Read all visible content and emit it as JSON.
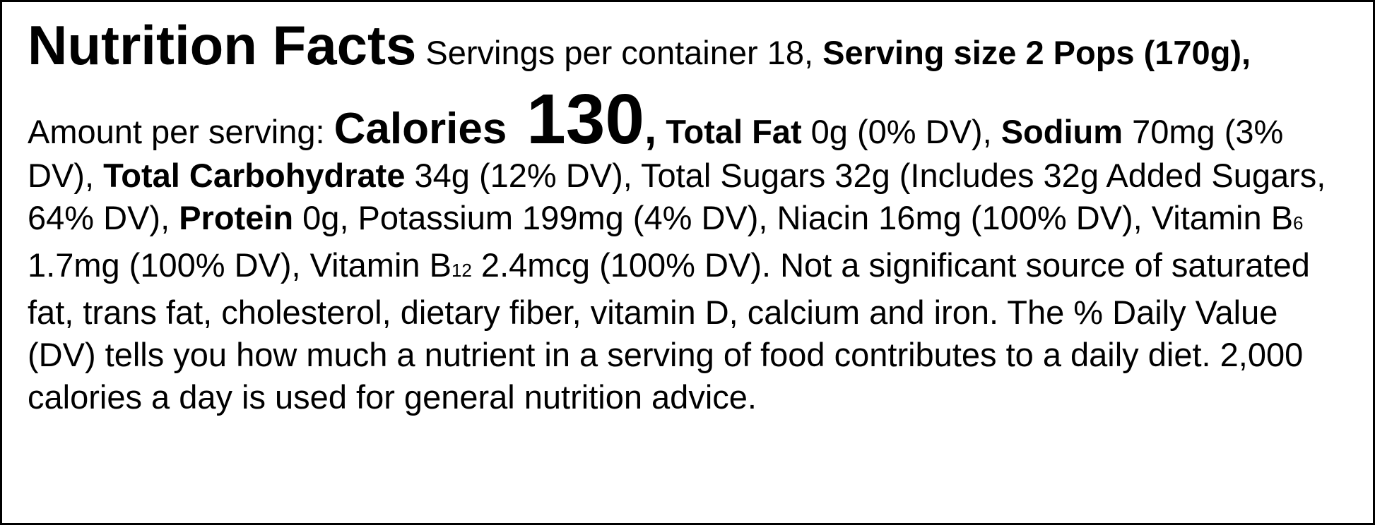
{
  "label": {
    "title": "Nutrition Facts",
    "segments": [
      " Servings per container 18, ",
      "Serving size 2 Pops (170g),",
      " Amount per serving: ",
      "Calories",
      " 130",
      ",",
      " Total Fat",
      " 0g (0% DV), ",
      "Sodium",
      " 70mg (3% DV), ",
      "Total Carbohydrate",
      " 34g (12% DV), Total Sugars 32g (Includes 32g Added Sugars, 64% DV), ",
      "Protein",
      " 0g, Potassium 199mg (4% DV), Niacin 16mg (100% DV), Vitamin B",
      "6",
      " 1.7mg (100% DV), Vitamin B",
      "12",
      " 2.4mcg (100% DV). Not a significant source of saturated fat, trans fat, cholesterol, dietary fiber, vitamin D, calcium and iron. The % Daily Value (DV) tells you how much a nutrient in a serving of food contributes to a daily diet. 2,000 calories a day is used for general nutrition advice."
    ]
  }
}
